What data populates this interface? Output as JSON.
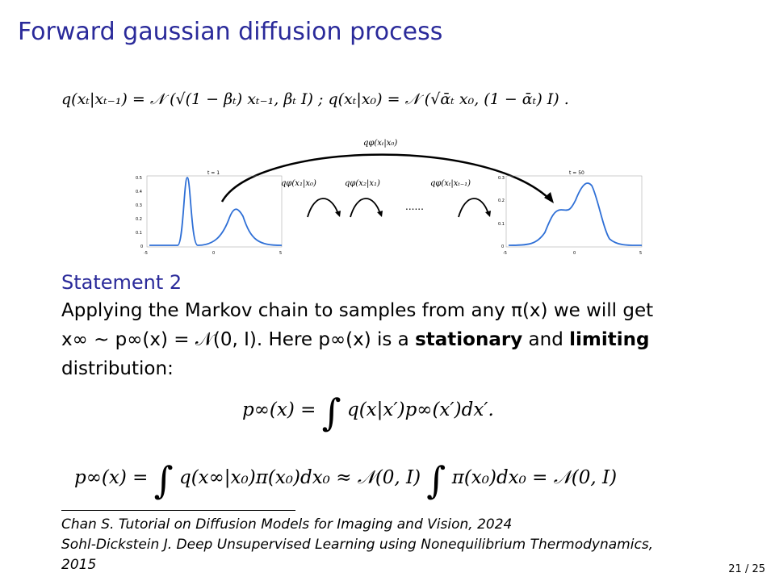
{
  "slide": {
    "title": "Forward gaussian diffusion process",
    "page_number": "21 / 25"
  },
  "equations": {
    "forward_step": "q(xₜ|xₜ₋₁) = 𝒩 (√(1 − βₜ) xₜ₋₁, βₜ I) ;     q(xₜ|x₀) = 𝒩 (√ᾱₜ x₀, (1 − ᾱₜ) I) .",
    "stationary_lhs": "p∞(x) =",
    "stationary_rhs": "q(x|x′)p∞(x′)dx′.",
    "limit_lhs": "p∞(x) =",
    "limit_mid": "q(x∞|x₀)π(x₀)dx₀ ≈ 𝒩(0, I)",
    "limit_rhs": "π(x₀)dx₀ = 𝒩(0, I)"
  },
  "figure": {
    "top_arc_label": "qφ(xₜ|x₀)",
    "step_labels": [
      "qφ(x₁|x₀)",
      "qφ(x₂|x₁)",
      "qφ(xₜ|xₜ₋₁)"
    ],
    "ellipsis": "......",
    "left_plot": {
      "title": "t = 1",
      "y_ticks": [
        "0.5",
        "0.4",
        "0.3",
        "0.2",
        "0.1",
        "0"
      ],
      "x_ticks": [
        "-5",
        "0",
        "5"
      ]
    },
    "right_plot": {
      "title": "t = 50",
      "y_ticks": [
        "0.3",
        "0.2",
        "0.1",
        "0"
      ],
      "x_ticks": [
        "-5",
        "0",
        "5"
      ]
    },
    "curve_color": "#2e6fd6"
  },
  "statement": {
    "heading": "Statement 2",
    "line1": "Applying the Markov chain to samples from any π(x) we will get",
    "line2_a": "x∞ ∼ p∞(x) = 𝒩(0, I).  Here p∞(x) is a",
    "line2_b": "stationary",
    "line2_c": "and",
    "line2_d": "limiting",
    "line3": "distribution:"
  },
  "references": [
    "Chan S. Tutorial on Diffusion Models for Imaging and Vision, 2024",
    "Sohl-Dickstein J. Deep Unsupervised Learning using Nonequilibrium Thermodynamics,",
    "2015"
  ],
  "colors": {
    "title": "#2a2a9a",
    "curve": "#2e6fd6"
  }
}
